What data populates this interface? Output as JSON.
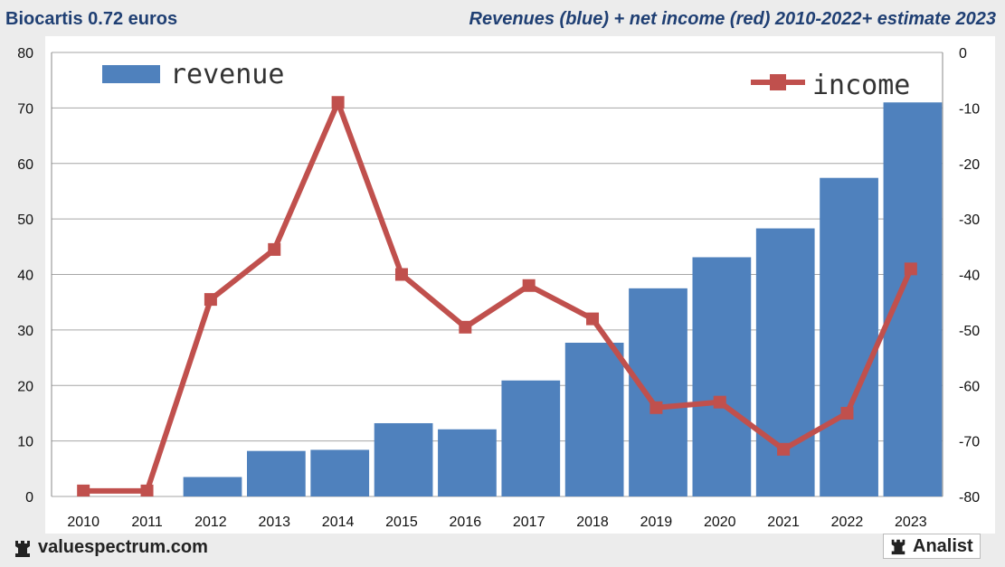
{
  "header": {
    "left_title": "Biocartis 0.72 euros",
    "right_title": "Revenues (blue) + net income (red) 2010-2022+ estimate 2023"
  },
  "footer": {
    "site": "valuespectrum.com",
    "brand": "Analist"
  },
  "colors": {
    "bar": "#4f81bd",
    "line": "#c0504d",
    "title": "#1f3f73",
    "plot_bg": "#ffffff",
    "grid": "#a6a6a6"
  },
  "chart_data": {
    "type": "bar+line",
    "categories": [
      "2010",
      "2011",
      "2012",
      "2013",
      "2014",
      "2015",
      "2016",
      "2017",
      "2018",
      "2019",
      "2020",
      "2021",
      "2022",
      "2023"
    ],
    "series": [
      {
        "name": "revenue",
        "axis": "left",
        "type": "bar",
        "values": [
          0,
          0,
          3.5,
          8.2,
          8.4,
          13.2,
          12.1,
          20.9,
          27.7,
          37.5,
          43.1,
          48.3,
          57.4,
          71.0
        ]
      },
      {
        "name": "income",
        "axis": "right",
        "type": "line",
        "values": [
          -79,
          -79,
          -44.5,
          -35.5,
          -9,
          -40,
          -49.5,
          -42,
          -48,
          -64,
          -63,
          -71.5,
          -65,
          -39
        ]
      }
    ],
    "y_left": {
      "min": 0,
      "max": 80,
      "ticks": [
        "0",
        "10",
        "20",
        "30",
        "40",
        "50",
        "60",
        "70",
        "80"
      ]
    },
    "y_right": {
      "min": -80,
      "max": 0,
      "ticks": [
        "-80",
        "-70",
        "-60",
        "-50",
        "-40",
        "-30",
        "-20",
        "-10",
        "0"
      ]
    },
    "legend": {
      "revenue_label": "revenue",
      "income_label": "income"
    },
    "grid": true
  }
}
